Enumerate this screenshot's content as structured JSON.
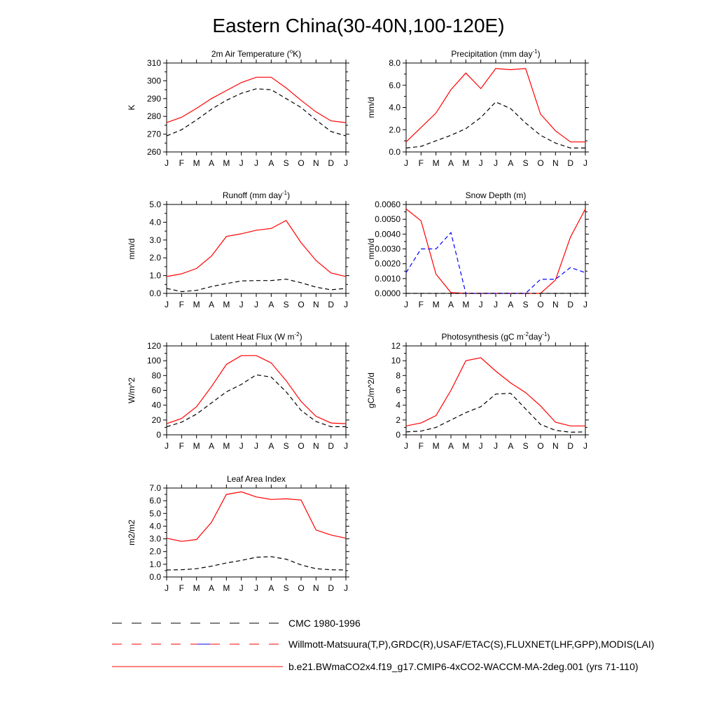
{
  "figure": {
    "title": "Eastern China(30-40N,100-120E)"
  },
  "legend": {
    "entries": [
      {
        "label": "CMC 1980-1996",
        "color": "#000000",
        "dashed": true
      },
      {
        "label": "Willmott-Matsuura(T,P),GRDC(R),USAF/ETAC(S),FLUXNET(LHF,GPP),MODIS(LAI)",
        "color": "#ff0000",
        "color2": "#0000ff",
        "dashed": true
      },
      {
        "label": "b.e21.BWmaCO2x4.f19_g17.CMIP6-4xCO2-WACCM-MA-2deg.001 (yrs 71-110)",
        "color": "#ff0000",
        "dashed": false
      }
    ]
  },
  "chart_data": [
    {
      "type": "line",
      "title": "2m Air Temperature (",
      "title_sup": "o",
      "title_post": "K)",
      "ylabel": "K",
      "ylim": [
        260,
        310
      ],
      "yticks": [
        260,
        270,
        280,
        290,
        300,
        310
      ],
      "ytick_labels": [
        "260",
        "270",
        "280",
        "290",
        "300",
        "310"
      ],
      "x": [
        "J",
        "F",
        "M",
        "A",
        "M",
        "J",
        "J",
        "A",
        "S",
        "O",
        "N",
        "D",
        "J"
      ],
      "series": [
        {
          "color": "#ff0000",
          "dash": false,
          "values": [
            276.5,
            279.5,
            284.5,
            290,
            294.5,
            299,
            302,
            302,
            296,
            289,
            282.5,
            277.5,
            276.5
          ]
        },
        {
          "color": "#000000",
          "dash": true,
          "values": [
            269,
            272.5,
            278,
            284,
            289,
            293,
            295.5,
            295,
            290,
            285,
            278,
            271.5,
            269
          ]
        }
      ]
    },
    {
      "type": "line",
      "title": "Precipitation (mm day",
      "title_sup": "-1",
      "title_post": ")",
      "ylabel": "mm/d",
      "ylim": [
        0,
        8
      ],
      "yticks": [
        0,
        2,
        4,
        6,
        8
      ],
      "ytick_labels": [
        "0.0",
        "2.0",
        "4.0",
        "6.0",
        "8.0"
      ],
      "x": [
        "J",
        "F",
        "M",
        "A",
        "M",
        "J",
        "J",
        "A",
        "S",
        "O",
        "N",
        "D",
        "J"
      ],
      "series": [
        {
          "color": "#ff0000",
          "dash": false,
          "values": [
            0.9,
            2.2,
            3.5,
            5.6,
            7.1,
            5.7,
            7.5,
            7.4,
            7.5,
            3.4,
            1.9,
            0.9,
            0.9
          ]
        },
        {
          "color": "#000000",
          "dash": true,
          "values": [
            0.35,
            0.5,
            1.0,
            1.5,
            2.1,
            3.1,
            4.5,
            3.9,
            2.6,
            1.5,
            0.8,
            0.35,
            0.35
          ]
        }
      ]
    },
    {
      "type": "line",
      "title": "Runoff (mm day",
      "title_sup": "-1",
      "title_post": ")",
      "ylabel": "mm/d",
      "ylim": [
        0,
        5
      ],
      "yticks": [
        0,
        1,
        2,
        3,
        4,
        5
      ],
      "ytick_labels": [
        "0.0",
        "1.0",
        "2.0",
        "3.0",
        "4.0",
        "5.0"
      ],
      "x": [
        "J",
        "F",
        "M",
        "A",
        "M",
        "J",
        "J",
        "A",
        "S",
        "O",
        "N",
        "D",
        "J"
      ],
      "series": [
        {
          "color": "#ff0000",
          "dash": false,
          "values": [
            0.95,
            1.1,
            1.4,
            2.1,
            3.2,
            3.35,
            3.55,
            3.65,
            4.1,
            2.85,
            1.85,
            1.15,
            0.95
          ]
        },
        {
          "color": "#000000",
          "dash": true,
          "values": [
            0.28,
            0.1,
            0.17,
            0.38,
            0.55,
            0.7,
            0.72,
            0.72,
            0.8,
            0.6,
            0.35,
            0.2,
            0.28
          ]
        }
      ]
    },
    {
      "type": "line",
      "title": "Snow Depth (m)",
      "title_sup": "",
      "title_post": "",
      "ylabel": "mm/d",
      "ylim": [
        0,
        0.006
      ],
      "yticks": [
        0,
        0.001,
        0.002,
        0.003,
        0.004,
        0.005,
        0.006
      ],
      "ytick_labels": [
        "0.0000",
        "0.0010",
        "0.0020",
        "0.0030",
        "0.0040",
        "0.0050",
        "0.0060"
      ],
      "x": [
        "J",
        "F",
        "M",
        "A",
        "M",
        "J",
        "J",
        "A",
        "S",
        "O",
        "N",
        "D",
        "J"
      ],
      "series": [
        {
          "color": "#ff0000",
          "dash": false,
          "values": [
            0.0057,
            0.0049,
            0.0013,
            5e-05,
            0,
            0,
            0,
            0,
            0,
            0,
            0.0009,
            0.0038,
            0.0057
          ]
        },
        {
          "color": "#0000ff",
          "dash": true,
          "values": [
            0.0014,
            0.003,
            0.003,
            0.0041,
            0,
            0,
            0,
            0,
            0,
            0.00095,
            0.00095,
            0.00175,
            0.0014
          ]
        },
        {
          "color": "#000000",
          "dash": true,
          "values": [
            0,
            0,
            0,
            0,
            0,
            0,
            0,
            0,
            0,
            0,
            0,
            0,
            0
          ]
        }
      ]
    },
    {
      "type": "line",
      "title": "Latent Heat Flux (W m",
      "title_sup": "-2",
      "title_post": ")",
      "ylabel": "W/m^2",
      "ylim": [
        0,
        120
      ],
      "yticks": [
        0,
        20,
        40,
        60,
        80,
        100,
        120
      ],
      "ytick_labels": [
        "0",
        "20",
        "40",
        "60",
        "80",
        "100",
        "120"
      ],
      "x": [
        "J",
        "F",
        "M",
        "A",
        "M",
        "J",
        "J",
        "A",
        "S",
        "O",
        "N",
        "D",
        "J"
      ],
      "series": [
        {
          "color": "#ff0000",
          "dash": false,
          "values": [
            15,
            22,
            38,
            65,
            95,
            107,
            107,
            97,
            73,
            45,
            25,
            16,
            15
          ]
        },
        {
          "color": "#000000",
          "dash": true,
          "values": [
            11,
            17,
            28,
            43,
            58,
            68,
            81,
            78,
            58,
            33,
            18,
            11,
            11
          ]
        }
      ]
    },
    {
      "type": "line",
      "title": "Photosynthesis (gC m",
      "title_sup": "-2",
      "title_post": "day",
      "title_sup2": "-1",
      "title_post2": ")",
      "ylabel": "gC/m^2/d",
      "ylim": [
        0,
        12
      ],
      "yticks": [
        0,
        2,
        4,
        6,
        8,
        10,
        12
      ],
      "ytick_labels": [
        "0",
        "2",
        "4",
        "6",
        "8",
        "10",
        "12"
      ],
      "x": [
        "J",
        "F",
        "M",
        "A",
        "M",
        "J",
        "J",
        "A",
        "S",
        "O",
        "N",
        "D",
        "J"
      ],
      "series": [
        {
          "color": "#ff0000",
          "dash": false,
          "values": [
            1.2,
            1.6,
            2.6,
            6.0,
            10.0,
            10.4,
            8.6,
            7.0,
            5.7,
            3.9,
            1.7,
            1.2,
            1.2
          ]
        },
        {
          "color": "#000000",
          "dash": true,
          "values": [
            0.4,
            0.5,
            1.0,
            2.0,
            3.0,
            3.8,
            5.5,
            5.6,
            3.5,
            1.4,
            0.6,
            0.35,
            0.4
          ]
        }
      ]
    },
    {
      "type": "line",
      "title": "Leaf Area Index",
      "title_sup": "",
      "title_post": "",
      "ylabel": "m2/m2",
      "ylim": [
        0,
        7
      ],
      "yticks": [
        0,
        1,
        2,
        3,
        4,
        5,
        6,
        7
      ],
      "ytick_labels": [
        "0.0",
        "1.0",
        "2.0",
        "3.0",
        "4.0",
        "5.0",
        "6.0",
        "7.0"
      ],
      "x": [
        "J",
        "F",
        "M",
        "A",
        "M",
        "J",
        "J",
        "A",
        "S",
        "O",
        "N",
        "D",
        "J"
      ],
      "series": [
        {
          "color": "#ff0000",
          "dash": false,
          "values": [
            3.05,
            2.8,
            2.95,
            4.3,
            6.5,
            6.7,
            6.3,
            6.1,
            6.15,
            6.05,
            3.7,
            3.3,
            3.05
          ]
        },
        {
          "color": "#000000",
          "dash": true,
          "values": [
            0.55,
            0.57,
            0.65,
            0.85,
            1.1,
            1.3,
            1.55,
            1.6,
            1.4,
            0.95,
            0.65,
            0.57,
            0.55
          ]
        }
      ]
    }
  ]
}
